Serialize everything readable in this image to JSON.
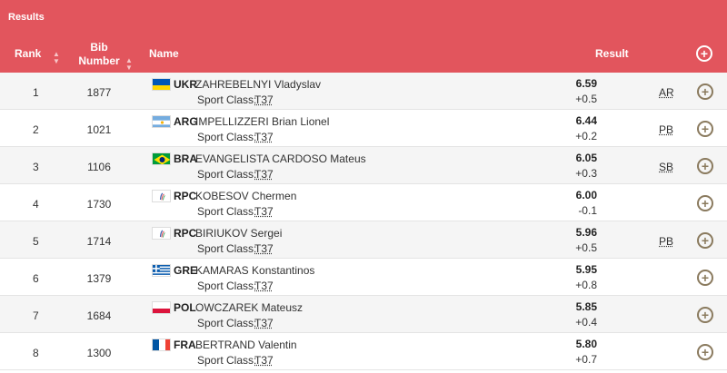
{
  "header": {
    "title": "Results",
    "rank_label": "Rank",
    "bib_label_line1": "Bib",
    "bib_label_line2": "Number",
    "name_label": "Name",
    "result_label": "Result",
    "sort_up_icon": "▲",
    "sort_down_icon": "▼",
    "expand_all_icon": "plus-circle-icon"
  },
  "sport_class_label": "Sport Class:",
  "rows": [
    {
      "rank": "1",
      "bib": "1877",
      "noc": "UKR",
      "name": "ZAHREBELNYI Vladyslav",
      "sport_class": "T37",
      "result": "6.59",
      "wind": "+0.5",
      "record": "AR",
      "flag": "ukr"
    },
    {
      "rank": "2",
      "bib": "1021",
      "noc": "ARG",
      "name": "IMPELLIZZERI Brian Lionel",
      "sport_class": "T37",
      "result": "6.44",
      "wind": "+0.2",
      "record": "PB",
      "flag": "arg"
    },
    {
      "rank": "3",
      "bib": "1106",
      "noc": "BRA",
      "name": "EVANGELISTA CARDOSO Mateus",
      "sport_class": "T37",
      "result": "6.05",
      "wind": "+0.3",
      "record": "SB",
      "flag": "bra"
    },
    {
      "rank": "4",
      "bib": "1730",
      "noc": "RPC",
      "name": "KOBESOV Chermen",
      "sport_class": "T37",
      "result": "6.00",
      "wind": "-0.1",
      "record": "",
      "flag": "rpc"
    },
    {
      "rank": "5",
      "bib": "1714",
      "noc": "RPC",
      "name": "BIRIUKOV Sergei",
      "sport_class": "T37",
      "result": "5.96",
      "wind": "+0.5",
      "record": "PB",
      "flag": "rpc"
    },
    {
      "rank": "6",
      "bib": "1379",
      "noc": "GRE",
      "name": "KAMARAS Konstantinos",
      "sport_class": "T37",
      "result": "5.95",
      "wind": "+0.8",
      "record": "",
      "flag": "gre"
    },
    {
      "rank": "7",
      "bib": "1684",
      "noc": "POL",
      "name": "OWCZAREK Mateusz",
      "sport_class": "T37",
      "result": "5.85",
      "wind": "+0.4",
      "record": "",
      "flag": "pol"
    },
    {
      "rank": "8",
      "bib": "1300",
      "noc": "FRA",
      "name": "BERTRAND Valentin",
      "sport_class": "T37",
      "result": "5.80",
      "wind": "+0.7",
      "record": "",
      "flag": "fra"
    }
  ],
  "colors": {
    "header_bg": "#e2555d",
    "expand_icon": "#8a7a5e",
    "alt_row": "#f5f5f5"
  }
}
